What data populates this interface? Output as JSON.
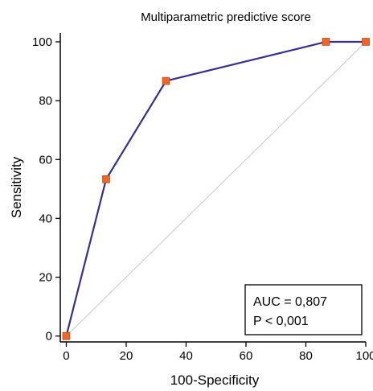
{
  "chart_data": {
    "type": "line",
    "title": "Multiparametric predictive score",
    "xlabel": "100-Specificity",
    "ylabel": "Sensitivity",
    "xlim": [
      -2,
      100
    ],
    "ylim": [
      -2,
      103
    ],
    "xticks": [
      "0",
      "20",
      "40",
      "60",
      "80",
      "100"
    ],
    "yticks": [
      "0",
      "20",
      "40",
      "60",
      "80",
      "100"
    ],
    "grid": false,
    "legend": "none",
    "reference_line": {
      "x": [
        0,
        100
      ],
      "y": [
        0,
        100
      ],
      "color": "#c8c8c8"
    },
    "series": [
      {
        "x": [
          0,
          13.3,
          33.3,
          86.7,
          100
        ],
        "y": [
          0,
          53.3,
          86.7,
          100,
          100
        ],
        "line_color": "#33308f",
        "marker_color": "#f26522"
      }
    ],
    "annotations": [
      "AUC = 0,807",
      "P < 0,001"
    ]
  }
}
